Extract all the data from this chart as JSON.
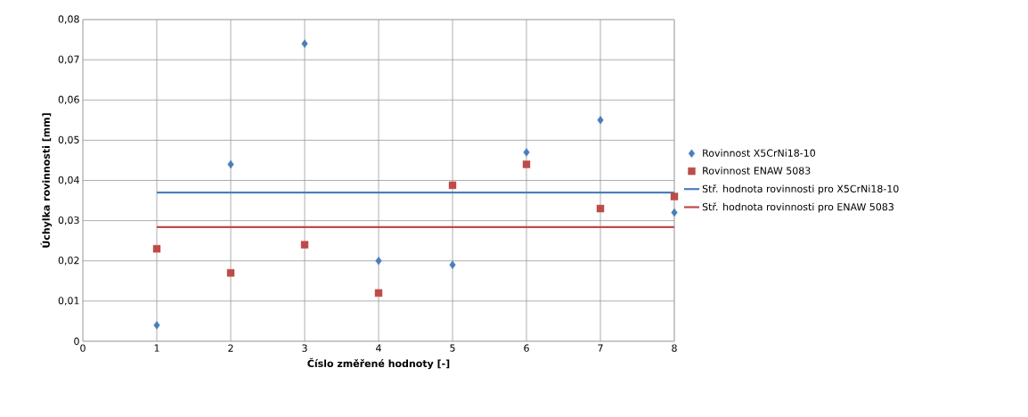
{
  "chart_data": {
    "type": "scatter",
    "xlabel": "Číslo změřené hodnoty [-]",
    "ylabel": "Úchylka rovinnosti [mm]",
    "xlim": [
      0,
      8
    ],
    "xticks": [
      0,
      1,
      2,
      3,
      4,
      5,
      6,
      7,
      8
    ],
    "ylim": [
      0,
      0.08
    ],
    "yticks": [
      {
        "value": 0,
        "label": "0"
      },
      {
        "value": 0.01,
        "label": "0,01"
      },
      {
        "value": 0.02,
        "label": "0,02"
      },
      {
        "value": 0.03,
        "label": "0,03"
      },
      {
        "value": 0.04,
        "label": "0,04"
      },
      {
        "value": 0.05,
        "label": "0,05"
      },
      {
        "value": 0.06,
        "label": "0,06"
      },
      {
        "value": 0.07,
        "label": "0,07"
      },
      {
        "value": 0.08,
        "label": "0,08"
      }
    ],
    "grid": true,
    "legend": "right",
    "series": [
      {
        "name": "Rovinnost X5CrNi18-10",
        "marker": "diamond",
        "color": "#4a7ebb",
        "x": [
          1,
          2,
          3,
          4,
          5,
          6,
          7,
          8
        ],
        "values": [
          0.004,
          0.044,
          0.074,
          0.02,
          0.019,
          0.047,
          0.055,
          0.032
        ]
      },
      {
        "name": "Rovinnost ENAW 5083",
        "marker": "square",
        "color": "#be4b48",
        "x": [
          1,
          2,
          3,
          4,
          5,
          6,
          7,
          8
        ],
        "values": [
          0.023,
          0.017,
          0.024,
          0.012,
          0.0388,
          0.044,
          0.033,
          0.036
        ]
      },
      {
        "name": "Stř. hodnota rovinnosti pro X5CrNi18-10",
        "type": "line",
        "marker": "none",
        "color": "#4a7ebb",
        "x": [
          1,
          8
        ],
        "values": [
          0.037,
          0.037
        ]
      },
      {
        "name": "Stř. hodnota rovinnosti pro ENAW 5083",
        "type": "line",
        "marker": "none",
        "color": "#be4b48",
        "x": [
          1,
          8
        ],
        "values": [
          0.0284,
          0.0284
        ]
      }
    ]
  }
}
